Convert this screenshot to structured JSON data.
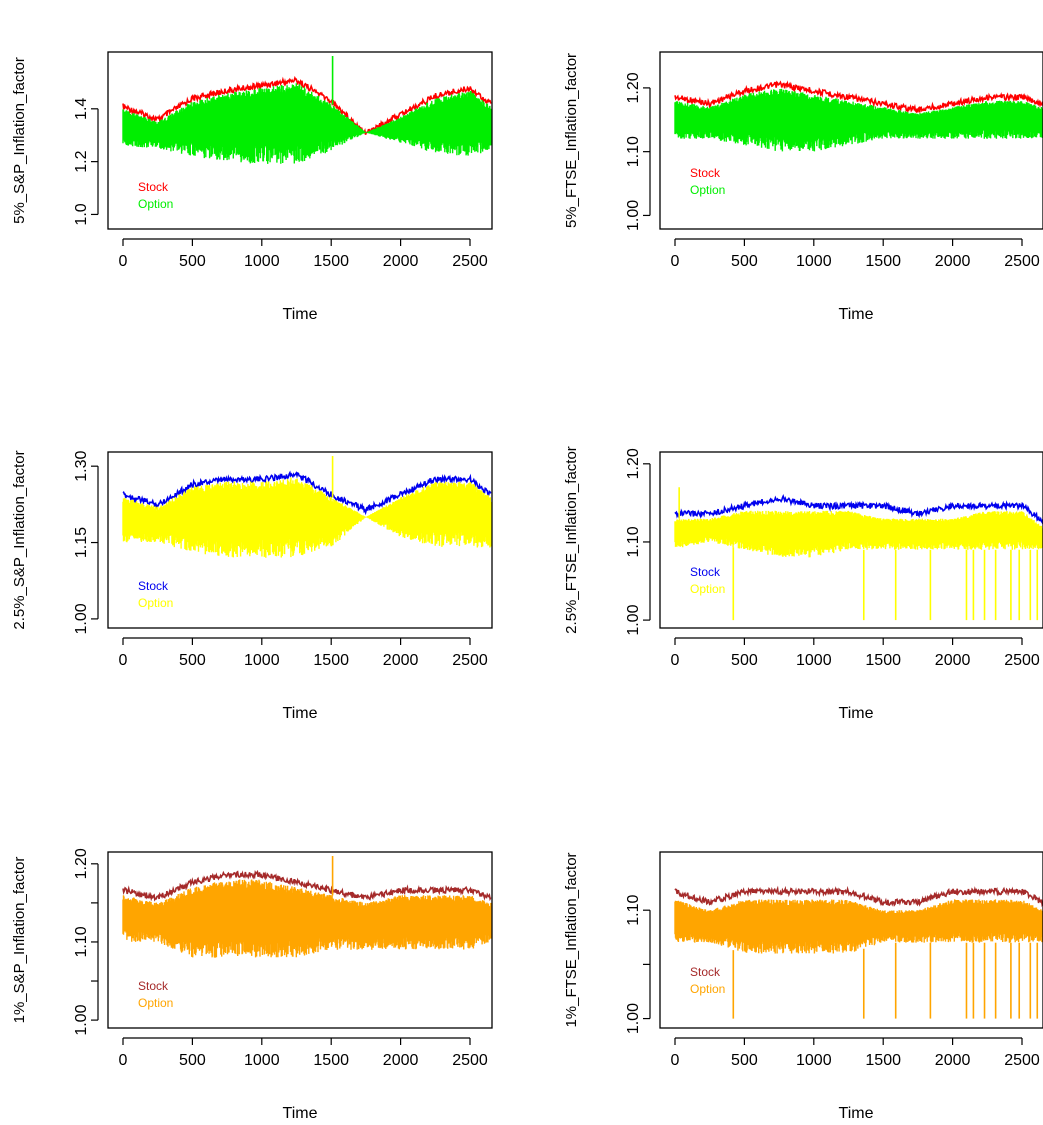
{
  "chart_data": [
    {
      "type": "line",
      "ylabel": "5%_S&P_Inflation_factor",
      "xlabel": "Time",
      "xlim": [
        0,
        2650
      ],
      "x_ticks": [
        0,
        500,
        1000,
        1500,
        2000,
        2500
      ],
      "ylim": [
        0.96,
        1.6
      ],
      "y_ticks": [
        1.0,
        1.2,
        1.4
      ],
      "y_tick_labels": [
        "1.0",
        "1.2",
        "1.4"
      ],
      "series": [
        {
          "name": "Stock",
          "color": "#ff0000",
          "role": "upper",
          "x": [
            0,
            250,
            500,
            750,
            1000,
            1250,
            1500,
            1750,
            2000,
            2250,
            2500,
            2650
          ],
          "values": [
            1.42,
            1.37,
            1.45,
            1.48,
            1.5,
            1.52,
            1.44,
            1.32,
            1.39,
            1.46,
            1.49,
            1.43
          ]
        },
        {
          "name": "Option",
          "color": "#00ee00",
          "role": "band",
          "x": [
            0,
            250,
            500,
            750,
            1000,
            1250,
            1500,
            1750,
            2000,
            2250,
            2500,
            2650
          ],
          "upper": [
            1.4,
            1.35,
            1.43,
            1.46,
            1.48,
            1.5,
            1.42,
            1.31,
            1.37,
            1.44,
            1.47,
            1.41
          ],
          "lower": [
            1.26,
            1.25,
            1.22,
            1.2,
            1.19,
            1.19,
            1.24,
            1.31,
            1.27,
            1.23,
            1.22,
            1.24
          ],
          "spikes": [
            {
              "x": 1510,
              "y": 1.6
            }
          ]
        }
      ]
    },
    {
      "type": "line",
      "ylabel": "5%_FTSE_Inflation_factor",
      "xlabel": "Time",
      "xlim": [
        0,
        2650
      ],
      "x_ticks": [
        0,
        500,
        1000,
        1500,
        2000,
        2500
      ],
      "ylim": [
        0.985,
        1.25
      ],
      "y_ticks": [
        1.0,
        1.1,
        1.2
      ],
      "y_tick_labels": [
        "1.00",
        "1.10",
        "1.20"
      ],
      "series": [
        {
          "name": "Stock",
          "color": "#ff0000",
          "role": "upper",
          "x": [
            0,
            250,
            500,
            750,
            1000,
            1250,
            1500,
            1750,
            2000,
            2250,
            2500,
            2650
          ],
          "values": [
            1.19,
            1.18,
            1.2,
            1.21,
            1.2,
            1.19,
            1.18,
            1.17,
            1.18,
            1.19,
            1.19,
            1.18
          ]
        },
        {
          "name": "Option",
          "color": "#00ee00",
          "role": "band",
          "x": [
            0,
            250,
            500,
            750,
            1000,
            1250,
            1500,
            1750,
            2000,
            2250,
            2500,
            2650
          ],
          "upper": [
            1.18,
            1.17,
            1.19,
            1.2,
            1.19,
            1.18,
            1.17,
            1.16,
            1.17,
            1.18,
            1.18,
            1.17
          ],
          "lower": [
            1.12,
            1.12,
            1.11,
            1.1,
            1.1,
            1.11,
            1.12,
            1.12,
            1.12,
            1.12,
            1.12,
            1.12
          ],
          "spikes": []
        }
      ]
    },
    {
      "type": "line",
      "ylabel": "2.5%_S&P_Inflation_factor",
      "xlabel": "Time",
      "xlim": [
        0,
        2650
      ],
      "x_ticks": [
        0,
        500,
        1000,
        1500,
        2000,
        2500
      ],
      "ylim": [
        0.99,
        1.32
      ],
      "y_ticks": [
        1.0,
        1.15,
        1.3
      ],
      "y_tick_labels": [
        "1.00",
        "1.15",
        "1.30"
      ],
      "series": [
        {
          "name": "Stock",
          "color": "#0000ee",
          "role": "upper",
          "x": [
            0,
            250,
            500,
            750,
            1000,
            1250,
            1500,
            1750,
            2000,
            2250,
            2500,
            2650
          ],
          "values": [
            1.25,
            1.23,
            1.27,
            1.28,
            1.28,
            1.29,
            1.25,
            1.22,
            1.25,
            1.28,
            1.28,
            1.25
          ]
        },
        {
          "name": "Option",
          "color": "#ffff00",
          "role": "band",
          "x": [
            0,
            250,
            500,
            750,
            1000,
            1250,
            1500,
            1750,
            2000,
            2250,
            2500,
            2650
          ],
          "upper": [
            1.24,
            1.22,
            1.26,
            1.27,
            1.27,
            1.28,
            1.24,
            1.2,
            1.24,
            1.27,
            1.27,
            1.24
          ],
          "lower": [
            1.15,
            1.15,
            1.13,
            1.12,
            1.12,
            1.12,
            1.14,
            1.2,
            1.16,
            1.14,
            1.14,
            1.14
          ],
          "spikes": [
            {
              "x": 1510,
              "y": 1.32
            }
          ]
        }
      ]
    },
    {
      "type": "line",
      "ylabel": "2.5%_FTSE_Inflation_factor",
      "xlabel": "Time",
      "xlim": [
        0,
        2650
      ],
      "x_ticks": [
        0,
        500,
        1000,
        1500,
        2000,
        2500
      ],
      "ylim": [
        0.995,
        1.21
      ],
      "y_ticks": [
        1.0,
        1.1,
        1.2
      ],
      "y_tick_labels": [
        "1.00",
        "1.10",
        "1.20"
      ],
      "series": [
        {
          "name": "Stock",
          "color": "#0000ee",
          "role": "upper",
          "x": [
            0,
            250,
            500,
            750,
            1000,
            1250,
            1500,
            1750,
            2000,
            2250,
            2500,
            2650
          ],
          "values": [
            1.14,
            1.14,
            1.15,
            1.16,
            1.15,
            1.15,
            1.15,
            1.14,
            1.15,
            1.15,
            1.15,
            1.13
          ]
        },
        {
          "name": "Option",
          "color": "#ffff00",
          "role": "band",
          "x": [
            0,
            250,
            500,
            750,
            1000,
            1250,
            1500,
            1750,
            2000,
            2250,
            2500,
            2650
          ],
          "upper": [
            1.13,
            1.13,
            1.14,
            1.14,
            1.14,
            1.14,
            1.13,
            1.13,
            1.13,
            1.14,
            1.14,
            1.12
          ],
          "lower": [
            1.09,
            1.1,
            1.09,
            1.08,
            1.08,
            1.09,
            1.09,
            1.09,
            1.09,
            1.09,
            1.09,
            1.09
          ],
          "spikes": [
            {
              "x": 30,
              "y": 1.17
            },
            {
              "x": 420,
              "y": 1.0
            },
            {
              "x": 1360,
              "y": 1.0
            },
            {
              "x": 1590,
              "y": 1.0
            },
            {
              "x": 1840,
              "y": 1.0
            },
            {
              "x": 2100,
              "y": 1.0
            },
            {
              "x": 2150,
              "y": 1.0
            },
            {
              "x": 2230,
              "y": 1.0
            },
            {
              "x": 2310,
              "y": 1.0
            },
            {
              "x": 2420,
              "y": 1.0
            },
            {
              "x": 2480,
              "y": 1.0
            },
            {
              "x": 2560,
              "y": 1.0
            },
            {
              "x": 2610,
              "y": 1.0
            }
          ]
        }
      ]
    },
    {
      "type": "line",
      "ylabel": "1%_S&P_Inflation_factor",
      "xlabel": "Time",
      "xlim": [
        0,
        2650
      ],
      "x_ticks": [
        0,
        500,
        1000,
        1500,
        2000,
        2500
      ],
      "ylim": [
        0.995,
        1.21
      ],
      "y_ticks": [
        1.0,
        1.05,
        1.1,
        1.15,
        1.2
      ],
      "y_tick_labels": [
        "1.00",
        "",
        "1.10",
        "",
        "1.20"
      ],
      "series": [
        {
          "name": "Stock",
          "color": "#a52a2a",
          "role": "upper",
          "x": [
            0,
            250,
            500,
            750,
            1000,
            1250,
            1500,
            1750,
            2000,
            2250,
            2500,
            2650
          ],
          "values": [
            1.17,
            1.16,
            1.18,
            1.19,
            1.19,
            1.18,
            1.17,
            1.16,
            1.17,
            1.17,
            1.17,
            1.16
          ]
        },
        {
          "name": "Option",
          "color": "#ffa500",
          "role": "band",
          "x": [
            0,
            250,
            500,
            750,
            1000,
            1250,
            1500,
            1750,
            2000,
            2250,
            2500,
            2650
          ],
          "upper": [
            1.16,
            1.15,
            1.17,
            1.18,
            1.18,
            1.17,
            1.16,
            1.15,
            1.16,
            1.16,
            1.16,
            1.15
          ],
          "lower": [
            1.1,
            1.1,
            1.08,
            1.08,
            1.08,
            1.08,
            1.09,
            1.09,
            1.09,
            1.09,
            1.09,
            1.1
          ],
          "spikes": [
            {
              "x": 1510,
              "y": 1.21
            }
          ]
        }
      ]
    },
    {
      "type": "line",
      "ylabel": "1%_FTSE_Inflation_factor",
      "xlabel": "Time",
      "xlim": [
        0,
        2650
      ],
      "x_ticks": [
        0,
        500,
        1000,
        1500,
        2000,
        2500
      ],
      "ylim": [
        0.995,
        1.15
      ],
      "y_ticks": [
        1.0,
        1.05,
        1.1
      ],
      "y_tick_labels": [
        "1.00",
        "",
        "1.10"
      ],
      "series": [
        {
          "name": "Stock",
          "color": "#a52a2a",
          "role": "upper",
          "x": [
            0,
            250,
            500,
            750,
            1000,
            1250,
            1500,
            1750,
            2000,
            2250,
            2500,
            2650
          ],
          "values": [
            1.12,
            1.11,
            1.12,
            1.12,
            1.12,
            1.12,
            1.11,
            1.11,
            1.12,
            1.12,
            1.12,
            1.11
          ]
        },
        {
          "name": "Option",
          "color": "#ffa500",
          "role": "band",
          "x": [
            0,
            250,
            500,
            750,
            1000,
            1250,
            1500,
            1750,
            2000,
            2250,
            2500,
            2650
          ],
          "upper": [
            1.11,
            1.1,
            1.11,
            1.11,
            1.11,
            1.11,
            1.1,
            1.1,
            1.11,
            1.11,
            1.11,
            1.1
          ],
          "lower": [
            1.07,
            1.07,
            1.06,
            1.06,
            1.06,
            1.06,
            1.07,
            1.07,
            1.07,
            1.07,
            1.07,
            1.07
          ],
          "spikes": [
            {
              "x": 420,
              "y": 1.0
            },
            {
              "x": 1360,
              "y": 1.0
            },
            {
              "x": 1590,
              "y": 1.0
            },
            {
              "x": 1840,
              "y": 1.0
            },
            {
              "x": 2100,
              "y": 1.0
            },
            {
              "x": 2150,
              "y": 1.0
            },
            {
              "x": 2230,
              "y": 1.0
            },
            {
              "x": 2310,
              "y": 1.0
            },
            {
              "x": 2420,
              "y": 1.0
            },
            {
              "x": 2480,
              "y": 1.0
            },
            {
              "x": 2560,
              "y": 1.0
            },
            {
              "x": 2610,
              "y": 1.0
            }
          ]
        }
      ]
    }
  ]
}
